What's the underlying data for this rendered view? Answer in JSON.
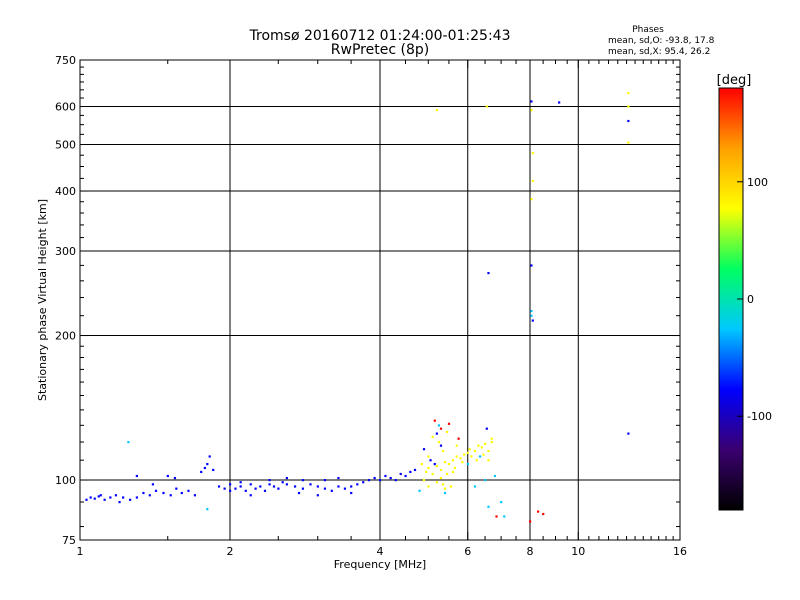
{
  "chart_data": {
    "type": "scatter",
    "title": "Tromsø 20160712 01:24:00-01:25:43",
    "subtitle": "RwPretec (8p)",
    "xlabel": "Frequency [MHz]",
    "ylabel": "Stationary phase Virtual Height [km]",
    "x_scale": "log",
    "y_scale": "log",
    "xlim": [
      1,
      16
    ],
    "ylim": [
      75,
      750
    ],
    "x_ticks": [
      1,
      2,
      4,
      6,
      8,
      10,
      16
    ],
    "x_tick_labels": [
      "1",
      "2",
      "4",
      "6",
      "8",
      "10",
      "16"
    ],
    "y_ticks": [
      75,
      100,
      200,
      300,
      400,
      500,
      600,
      750
    ],
    "y_tick_labels": [
      "75",
      "100",
      "200",
      "300",
      "400",
      "500",
      "600",
      "750"
    ],
    "grid_x": [
      2,
      4,
      6,
      8,
      10
    ],
    "grid_y": [
      100,
      200,
      300,
      400,
      500,
      600
    ],
    "stats": {
      "header": "Phases",
      "line_o": "mean, sd,O: -93.8, 17.8",
      "line_x": "mean, sd,X: 95.4, 26.2"
    },
    "colorbar": {
      "label": "[deg]",
      "range": [
        -180,
        180
      ],
      "ticks": [
        100,
        0,
        -100
      ],
      "tick_labels": [
        "100",
        "0",
        "-100"
      ],
      "colors": [
        "#000000",
        "#3a0070",
        "#0000ff",
        "#00c8ff",
        "#00ff60",
        "#ffff00",
        "#ffa000",
        "#ff0000"
      ]
    },
    "series": [
      {
        "points": [
          [
            1.03,
            91
          ],
          [
            1.05,
            92
          ],
          [
            1.07,
            91.5
          ],
          [
            1.09,
            92.5
          ],
          [
            1.12,
            91
          ],
          [
            1.15,
            92
          ],
          [
            1.18,
            93
          ],
          [
            1.22,
            92
          ],
          [
            1.26,
            91
          ],
          [
            1.3,
            92
          ],
          [
            1.34,
            94
          ],
          [
            1.38,
            93
          ],
          [
            1.42,
            95
          ],
          [
            1.47,
            94
          ],
          [
            1.52,
            93
          ],
          [
            1.56,
            96
          ],
          [
            1.6,
            94
          ],
          [
            1.65,
            95
          ],
          [
            1.7,
            93
          ],
          [
            1.75,
            104
          ],
          [
            1.78,
            106
          ],
          [
            1.8,
            108
          ],
          [
            1.82,
            112
          ],
          [
            1.85,
            105
          ],
          [
            1.9,
            97
          ],
          [
            1.95,
            96
          ],
          [
            2.0,
            95
          ],
          [
            2.05,
            96
          ],
          [
            2.1,
            97
          ],
          [
            2.15,
            95
          ],
          [
            2.2,
            98
          ],
          [
            2.25,
            96
          ],
          [
            2.3,
            97
          ],
          [
            2.35,
            95
          ],
          [
            2.4,
            98
          ],
          [
            2.45,
            97
          ],
          [
            2.5,
            96
          ],
          [
            2.55,
            99
          ],
          [
            2.6,
            98
          ],
          [
            2.7,
            97
          ],
          [
            2.8,
            96
          ],
          [
            2.9,
            98
          ],
          [
            3.0,
            97
          ],
          [
            3.1,
            96
          ],
          [
            3.2,
            95
          ],
          [
            3.3,
            97
          ],
          [
            3.4,
            96
          ],
          [
            3.5,
            97
          ],
          [
            3.6,
            98
          ],
          [
            3.7,
            99
          ],
          [
            3.8,
            100
          ],
          [
            3.9,
            101
          ],
          [
            4.0,
            100
          ],
          [
            4.1,
            102
          ],
          [
            4.2,
            101
          ],
          [
            4.3,
            100
          ],
          [
            4.4,
            103
          ],
          [
            4.5,
            102
          ],
          [
            4.6,
            104
          ],
          [
            4.7,
            105
          ],
          [
            1.4,
            98
          ],
          [
            1.5,
            102
          ],
          [
            1.55,
            101
          ],
          [
            2.0,
            98
          ],
          [
            2.1,
            99
          ],
          [
            2.4,
            100
          ],
          [
            2.6,
            101
          ],
          [
            2.8,
            100
          ],
          [
            3.1,
            100
          ],
          [
            3.3,
            101
          ],
          [
            1.3,
            102
          ],
          [
            3.0,
            93
          ],
          [
            2.2,
            93
          ],
          [
            2.75,
            94
          ],
          [
            3.5,
            94
          ],
          [
            1.1,
            93
          ],
          [
            1.2,
            90
          ],
          [
            4.9,
            116
          ],
          [
            5.05,
            110
          ],
          [
            5.15,
            108
          ],
          [
            5.3,
            118
          ],
          [
            6.6,
            270
          ],
          [
            8.05,
            615
          ],
          [
            8.05,
            280
          ],
          [
            8.1,
            215
          ],
          [
            9.15,
            612
          ],
          [
            12.6,
            560
          ],
          [
            12.6,
            125
          ],
          [
            6.55,
            128
          ],
          [
            5.2,
            125
          ]
        ]
      },
      {
        "points": [
          [
            4.85,
            108
          ],
          [
            4.95,
            104
          ],
          [
            5.0,
            106
          ],
          [
            5.1,
            103
          ],
          [
            5.2,
            107
          ],
          [
            5.3,
            105
          ],
          [
            5.4,
            109
          ],
          [
            5.5,
            108
          ],
          [
            5.6,
            110
          ],
          [
            5.7,
            112
          ],
          [
            5.8,
            111
          ],
          [
            5.9,
            113
          ],
          [
            6.0,
            114
          ],
          [
            6.1,
            112
          ],
          [
            6.2,
            115
          ],
          [
            6.3,
            118
          ],
          [
            6.4,
            117
          ],
          [
            6.5,
            119
          ],
          [
            6.6,
            115
          ],
          [
            6.7,
            120
          ],
          [
            5.45,
            103
          ],
          [
            5.65,
            106
          ],
          [
            5.85,
            109
          ],
          [
            6.05,
            116
          ],
          [
            6.25,
            110
          ],
          [
            6.45,
            113
          ],
          [
            5.35,
            98
          ],
          [
            5.55,
            97
          ],
          [
            6.7,
            122
          ],
          [
            6.6,
            110
          ],
          [
            4.9,
            100
          ],
          [
            5.0,
            97
          ],
          [
            5.2,
            99
          ],
          [
            5.4,
            96
          ],
          [
            5.3,
            101
          ],
          [
            5.6,
            104
          ],
          [
            5.0,
            112
          ],
          [
            5.1,
            123
          ],
          [
            5.25,
            120
          ],
          [
            5.35,
            115
          ],
          [
            5.45,
            126
          ],
          [
            5.7,
            118
          ],
          [
            5.2,
            590
          ],
          [
            6.55,
            600
          ],
          [
            8.05,
            590
          ],
          [
            8.1,
            480
          ],
          [
            8.1,
            420
          ],
          [
            8.05,
            385
          ],
          [
            12.6,
            640
          ],
          [
            12.6,
            505
          ],
          [
            12.6,
            600
          ]
        ]
      },
      {
        "points": [
          [
            1.25,
            120
          ],
          [
            1.8,
            87
          ],
          [
            8.05,
            225
          ],
          [
            8.05,
            220
          ],
          [
            6.0,
            108
          ],
          [
            6.35,
            112
          ],
          [
            6.6,
            88
          ],
          [
            7.0,
            90
          ],
          [
            4.8,
            95
          ],
          [
            5.4,
            94
          ],
          [
            6.2,
            97
          ],
          [
            6.8,
            102
          ],
          [
            7.1,
            84
          ],
          [
            5.25,
            130
          ],
          [
            6.5,
            100
          ]
        ]
      },
      {
        "points": [
          [
            5.15,
            133
          ],
          [
            5.3,
            128
          ],
          [
            5.5,
            131
          ],
          [
            5.75,
            122
          ],
          [
            6.85,
            84
          ],
          [
            8.0,
            82
          ],
          [
            8.5,
            85
          ],
          [
            8.3,
            86
          ]
        ]
      }
    ]
  }
}
